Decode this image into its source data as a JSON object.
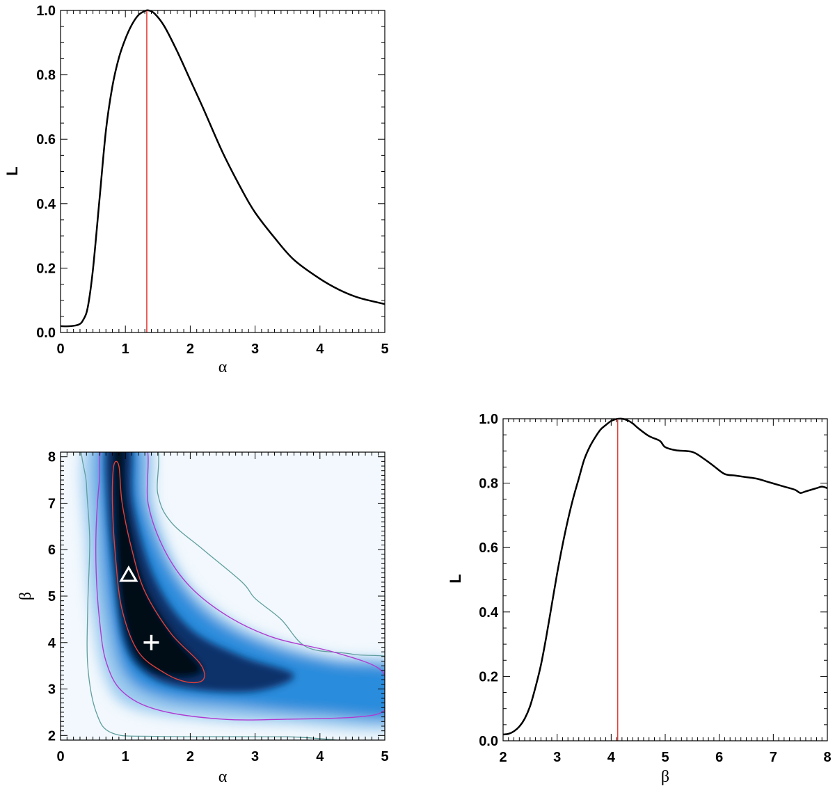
{
  "chart_data": [
    {
      "type": "line",
      "xlabel": "α",
      "ylabel": "L",
      "xlim": [
        0,
        5
      ],
      "ylim": [
        0,
        1
      ],
      "xticks": [
        "0",
        "1",
        "2",
        "3",
        "4",
        "5"
      ],
      "yticks": [
        "0.0",
        "0.2",
        "0.4",
        "0.6",
        "0.8",
        "1.0"
      ],
      "series": [
        {
          "x": [
            0,
            0.15,
            0.28,
            0.35,
            0.42,
            0.5,
            0.6,
            0.7,
            0.8,
            0.9,
            1.0,
            1.1,
            1.2,
            1.3,
            1.36,
            1.45,
            1.6,
            1.8,
            2.0,
            2.2,
            2.5,
            2.8,
            3.0,
            3.3,
            3.6,
            4.0,
            4.3,
            4.6,
            5.0
          ],
          "y": [
            0,
            0,
            0.005,
            0.02,
            0.06,
            0.18,
            0.4,
            0.62,
            0.76,
            0.85,
            0.91,
            0.955,
            0.985,
            0.998,
            1.0,
            0.99,
            0.95,
            0.87,
            0.78,
            0.69,
            0.55,
            0.43,
            0.36,
            0.28,
            0.21,
            0.15,
            0.115,
            0.09,
            0.07
          ]
        }
      ],
      "vline_x": 1.33,
      "vline_color": "#e0403a",
      "grid": false
    },
    {
      "type": "heatmap",
      "xlabel": "α",
      "ylabel": "β",
      "xlim": [
        0,
        5
      ],
      "ylim": [
        1.9,
        8.1
      ],
      "xticks": [
        "0",
        "1",
        "2",
        "3",
        "4",
        "5"
      ],
      "yticks": [
        "2",
        "3",
        "4",
        "5",
        "6",
        "7",
        "8"
      ],
      "colormap": [
        "#f2f8fd",
        "#2b8cdc",
        "#08306b",
        "#020818"
      ],
      "contours": [
        {
          "level": "inner",
          "color": "#e0403a"
        },
        {
          "level": "middle",
          "color": "#b03ad0"
        },
        {
          "level": "outer",
          "color": "#5f9e9e"
        }
      ],
      "markers": [
        {
          "symbol": "triangle",
          "x": 1.05,
          "y": 5.45,
          "color": "#ffffff"
        },
        {
          "symbol": "plus",
          "x": 1.4,
          "y": 4.0,
          "color": "#ffffff"
        }
      ],
      "grid": false
    },
    {
      "type": "line",
      "xlabel": "β",
      "ylabel": "L",
      "xlim": [
        2,
        8
      ],
      "ylim": [
        0,
        1
      ],
      "xticks": [
        "2",
        "3",
        "4",
        "5",
        "6",
        "7",
        "8"
      ],
      "yticks": [
        "0.0",
        "0.2",
        "0.4",
        "0.6",
        "0.8",
        "1.0"
      ],
      "series": [
        {
          "x": [
            2.0,
            2.1,
            2.2,
            2.3,
            2.4,
            2.5,
            2.6,
            2.7,
            2.8,
            2.9,
            3.0,
            3.1,
            3.2,
            3.3,
            3.4,
            3.5,
            3.6,
            3.7,
            3.8,
            3.9,
            4.0,
            4.1,
            4.2,
            4.3,
            4.4,
            4.5,
            4.7,
            4.9,
            5.0,
            5.2,
            5.5,
            5.7,
            5.9,
            6.1,
            6.3,
            6.5,
            6.7,
            6.9,
            7.1,
            7.2,
            7.4,
            7.5,
            7.6,
            7.8,
            7.9,
            8.0
          ],
          "y": [
            0.0,
            0.002,
            0.01,
            0.025,
            0.05,
            0.09,
            0.15,
            0.22,
            0.31,
            0.41,
            0.51,
            0.6,
            0.68,
            0.75,
            0.81,
            0.87,
            0.91,
            0.94,
            0.965,
            0.98,
            0.993,
            0.999,
            1.0,
            0.995,
            0.985,
            0.97,
            0.945,
            0.93,
            0.91,
            0.9,
            0.895,
            0.875,
            0.85,
            0.825,
            0.82,
            0.815,
            0.81,
            0.8,
            0.79,
            0.785,
            0.775,
            0.765,
            0.77,
            0.78,
            0.785,
            0.78
          ]
        }
      ],
      "vline_x": 4.12,
      "vline_color": "#e0403a",
      "grid": false
    }
  ]
}
